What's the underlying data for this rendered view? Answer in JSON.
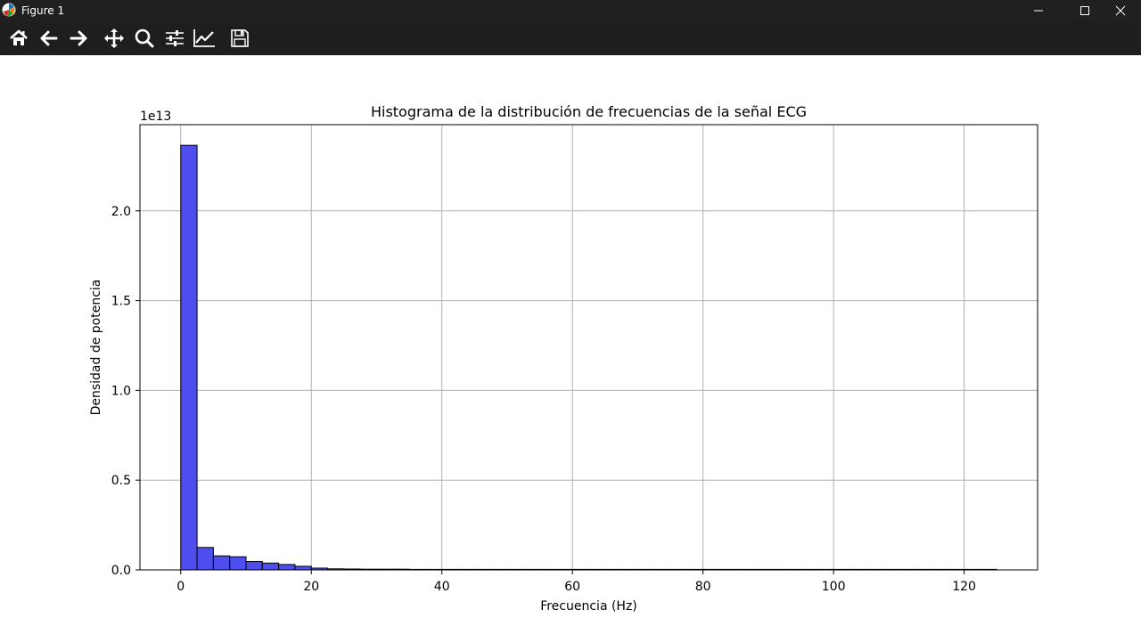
{
  "window": {
    "title": "Figure 1",
    "controls": [
      "minimize",
      "maximize",
      "close"
    ]
  },
  "toolbar": {
    "tools": [
      {
        "name": "home-icon",
        "label": "Home"
      },
      {
        "name": "back-arrow-icon",
        "label": "Back"
      },
      {
        "name": "forward-arrow-icon",
        "label": "Forward"
      },
      {
        "name": "pan-icon",
        "label": "Pan"
      },
      {
        "name": "zoom-icon",
        "label": "Zoom"
      },
      {
        "name": "subplots-config-icon",
        "label": "Configure subplots"
      },
      {
        "name": "edit-axes-icon",
        "label": "Edit axis"
      },
      {
        "name": "save-icon",
        "label": "Save"
      }
    ]
  },
  "chart_data": {
    "type": "bar",
    "title": "Histograma de la distribución de frecuencias de la señal ECG",
    "xlabel": "Frecuencia (Hz)",
    "ylabel": "Densidad de potencia",
    "y_scale_label": "1e13",
    "xlim": [
      -6.25,
      131.25
    ],
    "ylim": [
      0,
      2.48
    ],
    "x_ticks": [
      0,
      20,
      40,
      60,
      80,
      100,
      120
    ],
    "y_ticks": [
      0.0,
      0.5,
      1.0,
      1.5,
      2.0
    ],
    "y_tick_labels": [
      "0.0",
      "0.5",
      "1.0",
      "1.5",
      "2.0"
    ],
    "grid": true,
    "bar_color": "#4444ee",
    "edge_color": "#000000",
    "bin_width": 2.5,
    "bin_start": 0,
    "values": [
      2.365,
      0.125,
      0.078,
      0.073,
      0.047,
      0.038,
      0.03,
      0.02,
      0.01,
      0.006,
      0.005,
      0.004,
      0.004,
      0.004,
      0.003,
      0.003,
      0.003,
      0.003,
      0.003,
      0.003,
      0.003,
      0.003,
      0.003,
      0.003,
      0.003,
      0.003,
      0.003,
      0.003,
      0.003,
      0.003,
      0.003,
      0.003,
      0.003,
      0.003,
      0.003,
      0.003,
      0.003,
      0.003,
      0.003,
      0.003,
      0.003,
      0.003,
      0.003,
      0.003,
      0.003,
      0.003,
      0.003,
      0.003,
      0.003,
      0.003
    ]
  }
}
